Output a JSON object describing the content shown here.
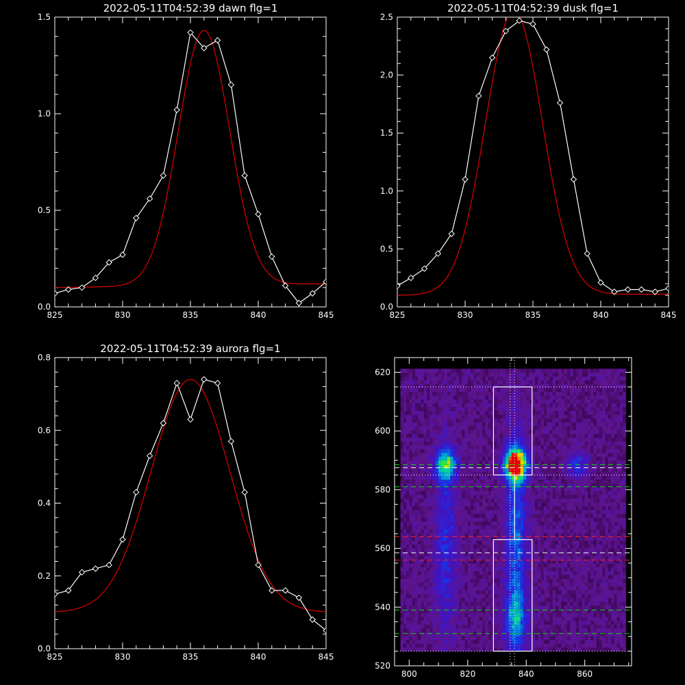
{
  "chart_data": [
    {
      "type": "line",
      "title": "2022-05-11T04:52:39 dawn flg=1",
      "xlim": [
        825,
        845
      ],
      "ylim": [
        0,
        1.5
      ],
      "xticks": [
        825,
        830,
        835,
        840,
        845
      ],
      "yticks": [
        0.0,
        0.5,
        1.0,
        1.5
      ],
      "ytick_labels": [
        "0.0",
        "0.5",
        "1.0",
        "1.5"
      ],
      "series": [
        {
          "role": "observed",
          "color": "#ffffff",
          "marker": "diamond",
          "x": [
            825,
            826,
            827,
            828,
            829,
            830,
            831,
            832,
            833,
            834,
            835,
            836,
            837,
            838,
            839,
            840,
            841,
            842,
            843,
            844,
            845
          ],
          "y": [
            0.07,
            0.09,
            0.1,
            0.15,
            0.23,
            0.27,
            0.46,
            0.56,
            0.68,
            1.02,
            1.42,
            1.34,
            1.38,
            1.15,
            0.68,
            0.48,
            0.26,
            0.11,
            0.02,
            0.07,
            0.13
          ]
        },
        {
          "role": "fit",
          "color": "#e00000",
          "gaussian": {
            "amp": 1.32,
            "center": 836.0,
            "sigma": 1.9,
            "base_left": 0.1,
            "base_right": 0.12
          }
        }
      ]
    },
    {
      "type": "line",
      "title": "2022-05-11T04:52:39 dusk flg=1",
      "xlim": [
        825,
        845
      ],
      "ylim": [
        0,
        2.5
      ],
      "xticks": [
        825,
        830,
        835,
        840,
        845
      ],
      "yticks": [
        0.0,
        0.5,
        1.0,
        1.5,
        2.0,
        2.5
      ],
      "ytick_labels": [
        "0.0",
        "0.5",
        "1.0",
        "1.5",
        "2.0",
        "2.5"
      ],
      "series": [
        {
          "role": "observed",
          "color": "#ffffff",
          "marker": "diamond",
          "x": [
            825,
            826,
            827,
            828,
            829,
            830,
            831,
            832,
            833,
            834,
            835,
            836,
            837,
            838,
            839,
            840,
            841,
            842,
            843,
            844,
            845
          ],
          "y": [
            0.18,
            0.25,
            0.33,
            0.46,
            0.63,
            1.1,
            1.82,
            2.15,
            2.38,
            2.47,
            2.44,
            2.22,
            1.76,
            1.1,
            0.46,
            0.21,
            0.13,
            0.15,
            0.15,
            0.13,
            0.16
          ]
        },
        {
          "role": "fit",
          "color": "#e00000",
          "gaussian": {
            "amp": 2.45,
            "center": 833.6,
            "sigma": 2.1,
            "base_left": 0.1,
            "base_right": 0.11
          }
        }
      ]
    },
    {
      "type": "line",
      "title": "2022-05-11T04:52:39 aurora flg=1",
      "xlim": [
        825,
        845
      ],
      "ylim": [
        0,
        0.8
      ],
      "xticks": [
        825,
        830,
        835,
        840,
        845
      ],
      "yticks": [
        0.0,
        0.2,
        0.4,
        0.6,
        0.8
      ],
      "ytick_labels": [
        "0.0",
        "0.2",
        "0.4",
        "0.6",
        "0.8"
      ],
      "series": [
        {
          "role": "observed",
          "color": "#ffffff",
          "marker": "diamond",
          "x": [
            825,
            826,
            827,
            828,
            829,
            830,
            831,
            832,
            833,
            834,
            835,
            836,
            837,
            838,
            839,
            840,
            841,
            842,
            843,
            844,
            845
          ],
          "y": [
            0.15,
            0.16,
            0.21,
            0.22,
            0.23,
            0.3,
            0.43,
            0.53,
            0.62,
            0.73,
            0.63,
            0.74,
            0.73,
            0.57,
            0.43,
            0.23,
            0.16,
            0.16,
            0.14,
            0.08,
            0.05
          ]
        },
        {
          "role": "fit",
          "color": "#e00000",
          "gaussian": {
            "amp": 0.64,
            "center": 835.0,
            "sigma": 2.9,
            "base_left": 0.1,
            "base_right": 0.1
          }
        }
      ]
    },
    {
      "type": "heatmap",
      "title": "",
      "xlim": [
        795,
        876
      ],
      "ylim": [
        520,
        625
      ],
      "xticks": [
        800,
        820,
        840,
        860
      ],
      "yticks": [
        520,
        540,
        560,
        580,
        600,
        620
      ],
      "colormap": "rainbow",
      "sources": [
        {
          "x": 812,
          "y": 588,
          "sx": 2.4,
          "sy": 3.5,
          "amp": 0.55
        },
        {
          "x": 812,
          "y": 560,
          "sx": 2.6,
          "sy": 22,
          "amp": 0.18
        },
        {
          "x": 836,
          "y": 588,
          "sx": 2.4,
          "sy": 3.5,
          "amp": 1.0
        },
        {
          "x": 836,
          "y": 560,
          "sx": 2.4,
          "sy": 26,
          "amp": 0.3
        },
        {
          "x": 836,
          "y": 535,
          "sx": 2.6,
          "sy": 6,
          "amp": 0.25
        },
        {
          "x": 857,
          "y": 588,
          "sx": 2.5,
          "sy": 3,
          "amp": 0.22
        }
      ],
      "boxes": [
        {
          "x0": 828.8,
          "x1": 842.0,
          "y0": 585,
          "y1": 615
        },
        {
          "x0": 828.8,
          "x1": 842.0,
          "y0": 525,
          "y1": 563
        }
      ],
      "vlines": [
        {
          "x": 834.5,
          "style": "dotted",
          "color": "#ffffff"
        },
        {
          "x": 836.0,
          "style": "dotted",
          "color": "#ffffff"
        }
      ],
      "hlines": [
        {
          "y": 615,
          "style": "dotted",
          "color": "#ffffff"
        },
        {
          "y": 585,
          "style": "dotted",
          "color": "#ffffff"
        },
        {
          "y": 588.5,
          "style": "dashed",
          "color": "#00e000"
        },
        {
          "y": 587.5,
          "style": "dashed",
          "color": "#ffffff"
        },
        {
          "y": 581,
          "style": "dashed",
          "color": "#00e000"
        },
        {
          "y": 564,
          "style": "dashed",
          "color": "#ff2020"
        },
        {
          "y": 558.5,
          "style": "dashed",
          "color": "#ffffff"
        },
        {
          "y": 556,
          "style": "dashed",
          "color": "#ff2020"
        },
        {
          "y": 539,
          "style": "dashed",
          "color": "#00e000"
        },
        {
          "y": 531,
          "style": "dashed",
          "color": "#00e000"
        },
        {
          "y": 525,
          "style": "dotted",
          "color": "#ffffff"
        }
      ],
      "center_line": {
        "x": 836.0,
        "y0": 563,
        "y1": 585,
        "color": "#ffffff"
      }
    }
  ]
}
